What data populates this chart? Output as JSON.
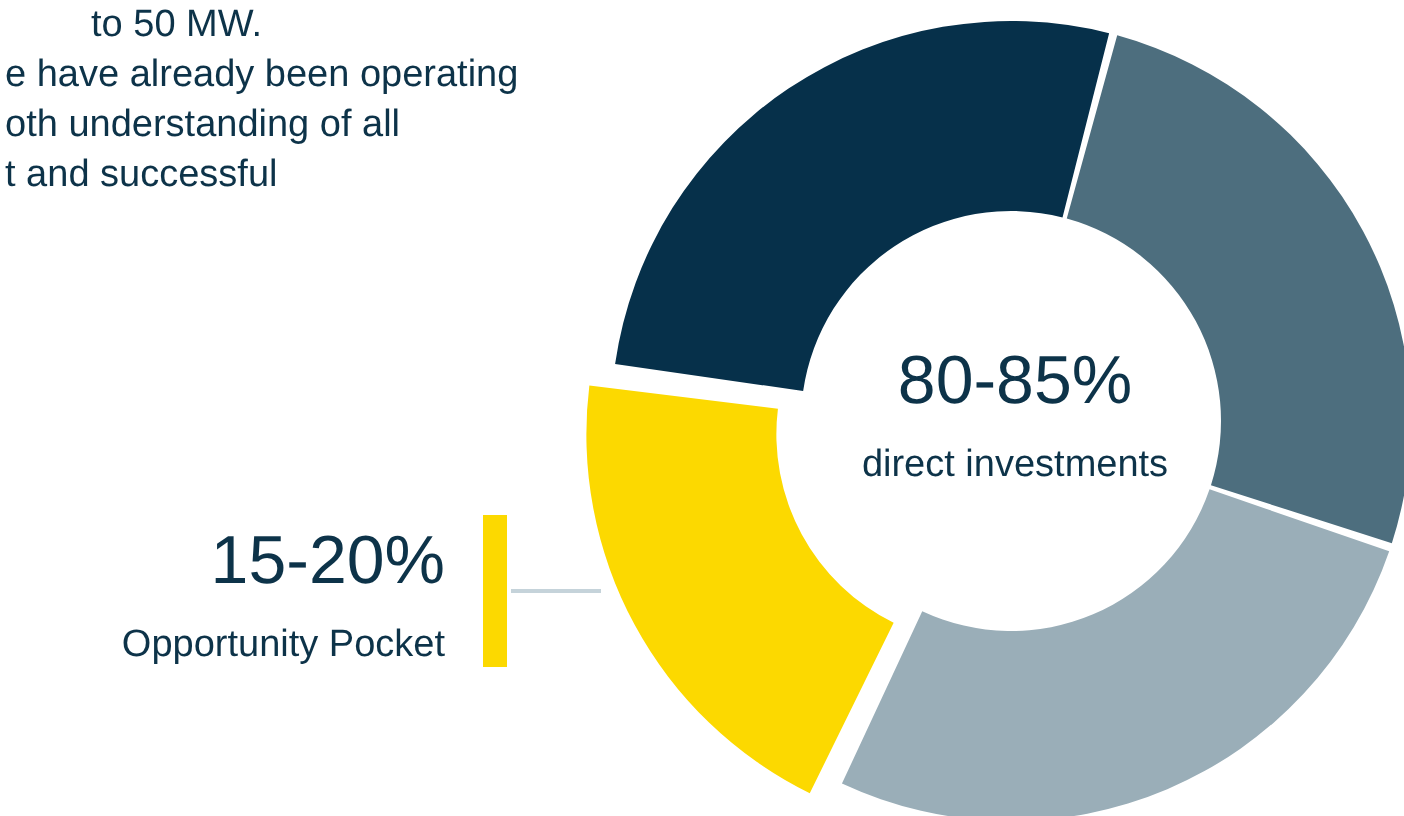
{
  "chart_data": {
    "type": "donut",
    "categories": [
      null,
      null,
      null,
      null
    ],
    "values": [
      27,
      26,
      27,
      20
    ],
    "colors": [
      "#06304a",
      "#4d6e7e",
      "#9aaeb8",
      "#fcd900"
    ],
    "annotations": [
      "to 50 MW.",
      "e have already been operating",
      "oth understanding of all",
      "t and successful",
      "80-85%",
      "direct investments",
      "15-20%",
      "Opportunity Pocket"
    ]
  }
}
